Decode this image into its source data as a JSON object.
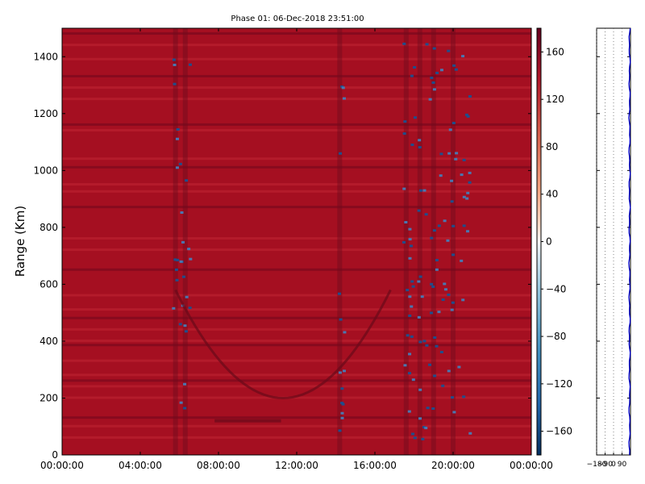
{
  "chart_data": [
    {
      "type": "heatmap",
      "title": "Phase 01: 06-Dec-2018 23:51:00",
      "xlabel": "",
      "ylabel": "Range (Km)",
      "x_tick_labels": [
        "00:00:00",
        "04:00:00",
        "08:00:00",
        "12:00:00",
        "16:00:00",
        "20:00:00",
        "00:00:00"
      ],
      "x_ticks_hours": [
        0,
        4,
        8,
        12,
        16,
        20,
        24
      ],
      "xlim_hours": [
        0,
        24
      ],
      "y_ticks": [
        0,
        200,
        400,
        600,
        800,
        1000,
        1200,
        1400
      ],
      "ylim": [
        0,
        1500
      ],
      "grid": false,
      "colormap": "RdBu_r",
      "color_base": "#a50f21",
      "colorbar": {
        "ticks": [
          160,
          120,
          80,
          40,
          0,
          -40,
          -80,
          -120,
          -160
        ],
        "tick_labels": [
          "160",
          "120",
          "80",
          "40",
          "0",
          "−40",
          "−80",
          "−120",
          "−160"
        ],
        "range": [
          -180,
          180
        ]
      },
      "features": {
        "vertical_bands_hours": [
          5.8,
          6.3,
          14.2,
          17.6,
          18.3,
          19.0,
          20.0
        ],
        "horizontal_bands_km": [
          1480,
          1440,
          1390,
          1330,
          1290,
          1250,
          1160,
          1140,
          1040,
          1010,
          950,
          925,
          870,
          760,
          720,
          650,
          560,
          510,
          480,
          440,
          400,
          385,
          330,
          280,
          260,
          240,
          200,
          130,
          100,
          60
        ]
      }
    },
    {
      "type": "line",
      "title": "",
      "x_tick_labels": [
        "−180",
        "−90",
        "0",
        "90"
      ],
      "x_ticks": [
        -180,
        -90,
        0,
        90
      ],
      "xlim": [
        -180,
        180
      ],
      "ylim": [
        0,
        1500
      ],
      "grid": true,
      "line_color": "#0000cc",
      "series_x_near": 170
    }
  ]
}
